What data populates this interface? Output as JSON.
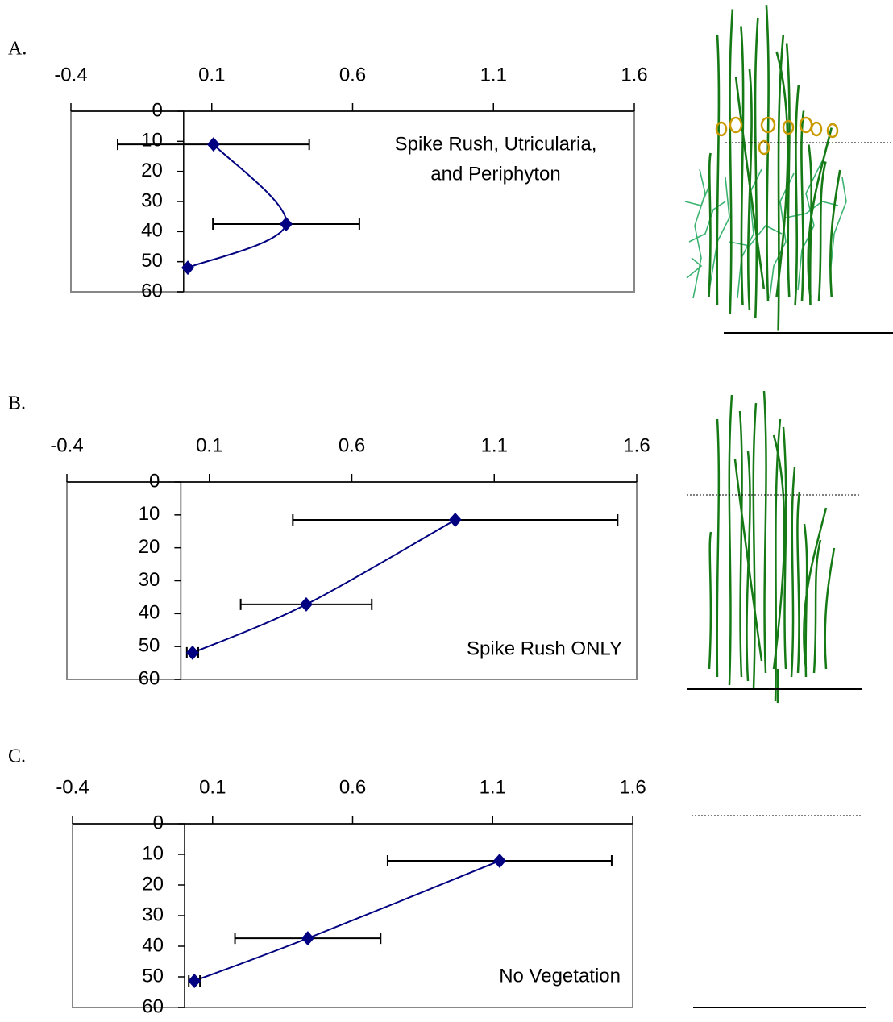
{
  "chart_data": [
    {
      "type": "line",
      "label": "A.",
      "annotation": [
        "Spike Rush, Utricularia,",
        "and Periphyton"
      ],
      "xlim": [
        -0.4,
        1.6
      ],
      "xticks": [
        -0.4,
        0.1,
        0.6,
        1.1,
        1.6
      ],
      "ylim": [
        0,
        60
      ],
      "yticks": [
        0,
        10,
        20,
        30,
        40,
        50,
        60
      ],
      "y_inverted": true,
      "series": [
        {
          "color": "#000080",
          "x": [
            0.106,
            0.364,
            0.015
          ],
          "values": [
            11,
            37.5,
            52
          ],
          "xerr": [
            0.34,
            0.26,
            0
          ]
        }
      ]
    },
    {
      "type": "line",
      "label": "B.",
      "annotation": [
        "Spike Rush ONLY"
      ],
      "xlim": [
        -0.4,
        1.6
      ],
      "xticks": [
        -0.4,
        0.1,
        0.6,
        1.1,
        1.6
      ],
      "ylim": [
        0,
        60
      ],
      "yticks": [
        0,
        10,
        20,
        30,
        40,
        50,
        60
      ],
      "y_inverted": true,
      "series": [
        {
          "color": "#000080",
          "x": [
            0.963,
            0.44,
            0.041
          ],
          "values": [
            11.5,
            37.2,
            51.9
          ],
          "xerr": [
            0.57,
            0.23,
            0.02
          ]
        }
      ]
    },
    {
      "type": "line",
      "label": "C.",
      "annotation": [
        "No Vegetation"
      ],
      "xlim": [
        -0.4,
        1.6
      ],
      "xticks": [
        -0.4,
        0.1,
        0.6,
        1.1,
        1.6
      ],
      "ylim": [
        0,
        60
      ],
      "yticks": [
        0,
        10,
        20,
        30,
        40,
        50,
        60
      ],
      "y_inverted": true,
      "series": [
        {
          "color": "#000080",
          "x": [
            1.125,
            0.44,
            0.035
          ],
          "values": [
            12.1,
            37.4,
            51.3
          ],
          "xerr": [
            0.4,
            0.26,
            0.02
          ]
        }
      ]
    }
  ]
}
